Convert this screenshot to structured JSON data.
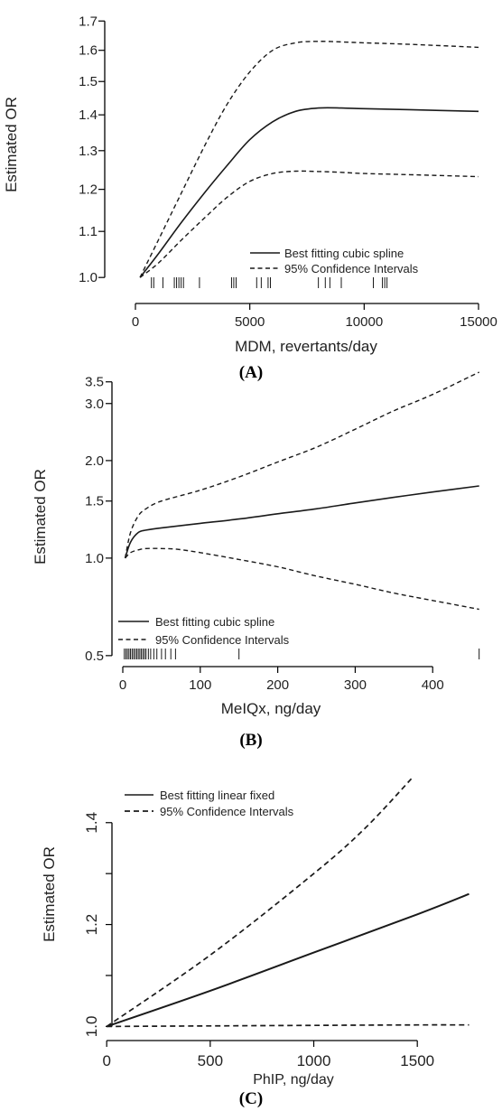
{
  "chart_data": [
    {
      "type": "line",
      "caption": "(A)",
      "xlabel": "MDM, revertants/day",
      "ylabel": "Estimated OR",
      "xlim": [
        0,
        15000
      ],
      "ylim": [
        0.98,
        1.72
      ],
      "y_scale": "log",
      "xticks": [
        0,
        5000,
        10000,
        15000
      ],
      "xtick_labels": [
        "0",
        "5000",
        "10000",
        "15000"
      ],
      "yticks": [
        1.0,
        1.1,
        1.2,
        1.3,
        1.4,
        1.5,
        1.6,
        1.7
      ],
      "ytick_labels": [
        "1.0",
        "1.1",
        "1.2",
        "1.3",
        "1.4",
        "1.5",
        "1.6",
        "1.7"
      ],
      "legend": {
        "position": "bottom-right",
        "entries": [
          "Best fitting cubic spline",
          "95% Confidence Intervals"
        ]
      },
      "series": [
        {
          "name": "Best fitting cubic spline",
          "style": "solid",
          "x": [
            200,
            1000,
            2000,
            3000,
            4000,
            5000,
            6000,
            7000,
            8000,
            9000,
            10000,
            12000,
            15000
          ],
          "y": [
            1.0,
            1.05,
            1.12,
            1.19,
            1.26,
            1.33,
            1.38,
            1.41,
            1.42,
            1.42,
            1.418,
            1.415,
            1.41
          ]
        },
        {
          "name": "95% Confidence Intervals",
          "style": "dashed",
          "x": [
            200,
            1000,
            2000,
            3000,
            4000,
            5000,
            6000,
            7000,
            8000,
            9000,
            10000,
            12000,
            15000
          ],
          "y": [
            1.0,
            1.08,
            1.19,
            1.31,
            1.43,
            1.53,
            1.6,
            1.625,
            1.63,
            1.628,
            1.625,
            1.62,
            1.61
          ]
        },
        {
          "name": "95% Confidence Intervals",
          "style": "dashed",
          "x": [
            200,
            1000,
            2000,
            3000,
            4000,
            5000,
            6000,
            7000,
            8000,
            9000,
            10000,
            12000,
            15000
          ],
          "y": [
            1.0,
            1.03,
            1.08,
            1.13,
            1.18,
            1.22,
            1.24,
            1.246,
            1.245,
            1.243,
            1.24,
            1.237,
            1.232
          ]
        }
      ],
      "rug": [
        700,
        800,
        1200,
        1700,
        1800,
        1900,
        2000,
        2100,
        2800,
        4200,
        4300,
        4400,
        5300,
        5500,
        5800,
        5900,
        8000,
        8300,
        8500,
        9000,
        10400,
        10800,
        10900,
        11000
      ]
    },
    {
      "type": "line",
      "caption": "(B)",
      "xlabel": "MeIQx, ng/day",
      "ylabel": "Estimated OR",
      "xlim": [
        0,
        465
      ],
      "ylim": [
        0.49,
        3.75
      ],
      "y_scale": "log",
      "xticks": [
        0,
        100,
        200,
        300,
        400
      ],
      "xtick_labels": [
        "0",
        "100",
        "200",
        "300",
        "400"
      ],
      "yticks": [
        0.5,
        1.0,
        1.5,
        2.0,
        3.0,
        3.5
      ],
      "ytick_labels": [
        "0.5",
        "1.0",
        "1.5",
        "2.0",
        "3.0",
        "3.5"
      ],
      "legend": {
        "position": "bottom-left",
        "entries": [
          "Best fitting cubic spline",
          "95% Confidence Intervals"
        ]
      },
      "series": [
        {
          "name": "Best fitting cubic spline",
          "style": "solid",
          "x": [
            3,
            10,
            20,
            30,
            50,
            100,
            150,
            200,
            250,
            300,
            350,
            400,
            460
          ],
          "y": [
            1.0,
            1.12,
            1.2,
            1.22,
            1.24,
            1.28,
            1.32,
            1.37,
            1.42,
            1.48,
            1.54,
            1.6,
            1.67
          ]
        },
        {
          "name": "95% Confidence Intervals",
          "style": "dashed",
          "x": [
            3,
            10,
            20,
            30,
            50,
            100,
            150,
            200,
            250,
            300,
            350,
            400,
            460
          ],
          "y": [
            1.0,
            1.2,
            1.35,
            1.42,
            1.5,
            1.62,
            1.78,
            1.98,
            2.2,
            2.5,
            2.85,
            3.2,
            3.75
          ]
        },
        {
          "name": "95% Confidence Intervals",
          "style": "dashed",
          "x": [
            3,
            10,
            20,
            30,
            50,
            70,
            100,
            150,
            200,
            250,
            300,
            350,
            400,
            460
          ],
          "y": [
            1.0,
            1.04,
            1.06,
            1.07,
            1.07,
            1.065,
            1.04,
            0.99,
            0.94,
            0.88,
            0.83,
            0.78,
            0.74,
            0.695
          ]
        }
      ],
      "rug": [
        2,
        4,
        6,
        8,
        10,
        12,
        14,
        16,
        18,
        20,
        22,
        24,
        26,
        28,
        30,
        33,
        36,
        40,
        44,
        50,
        55,
        62,
        68,
        150,
        460
      ]
    },
    {
      "type": "line",
      "caption": "(C)",
      "xlabel": "PhIP, ng/day",
      "ylabel": "Estimated OR",
      "xlim": [
        -40,
        1800
      ],
      "ylim": [
        0.99,
        1.49
      ],
      "xticks": [
        0,
        500,
        1000,
        1500
      ],
      "xtick_labels": [
        "0",
        "500",
        "1000",
        "1500"
      ],
      "yticks": [
        1.0,
        1.1,
        1.2,
        1.3,
        1.4
      ],
      "ytick_labels": [
        "1.0",
        "",
        "1.2",
        "",
        "1.4"
      ],
      "legend": {
        "position": "top-left",
        "entries": [
          "Best fitting linear fixed",
          "95% Confidence Intervals"
        ]
      },
      "series": [
        {
          "name": "Best fitting linear fixed",
          "style": "solid",
          "x": [
            0,
            500,
            1000,
            1500,
            1750
          ],
          "y": [
            1.0,
            1.07,
            1.145,
            1.22,
            1.26
          ]
        },
        {
          "name": "95% Confidence Intervals",
          "style": "dashed",
          "x": [
            0,
            500,
            1000,
            1250,
            1480
          ],
          "y": [
            1.0,
            1.14,
            1.3,
            1.39,
            1.49
          ]
        },
        {
          "name": "95% Confidence Intervals",
          "style": "dashed",
          "x": [
            0,
            500,
            1000,
            1500,
            1750
          ],
          "y": [
            1.0,
            1.001,
            1.002,
            1.003,
            1.003
          ]
        }
      ]
    }
  ]
}
